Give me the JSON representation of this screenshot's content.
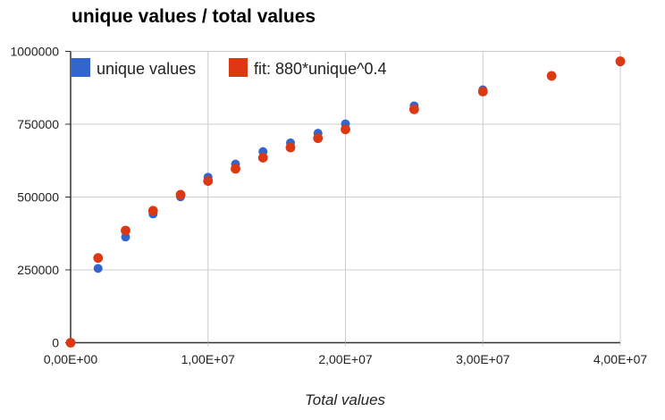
{
  "chart_data": {
    "type": "scatter",
    "title": "unique values / total values",
    "xlabel": "Total values",
    "ylabel": "",
    "xlim": [
      0,
      40000000
    ],
    "ylim": [
      0,
      1000000
    ],
    "grid": true,
    "legend_position": "top-inside",
    "x_tick_values": [
      0,
      10000000,
      20000000,
      30000000,
      40000000
    ],
    "x_tick_labels": [
      "0,00E+00",
      "1,00E+07",
      "2,00E+07",
      "3,00E+07",
      "4,00E+07"
    ],
    "y_tick_values": [
      0,
      250000,
      500000,
      750000,
      1000000
    ],
    "y_tick_labels": [
      "0",
      "250000",
      "500000",
      "750000",
      "1000000"
    ],
    "x": [
      0,
      2000000,
      4000000,
      6000000,
      8000000,
      10000000,
      12000000,
      14000000,
      16000000,
      18000000,
      20000000,
      25000000,
      30000000,
      35000000,
      40000000
    ],
    "series": [
      {
        "name": "unique values",
        "color": "#3366cc",
        "values": [
          0,
          255000,
          363000,
          442000,
          501000,
          568000,
          613000,
          656000,
          686000,
          719000,
          751000,
          813000,
          868000,
          915000,
          964000
        ]
      },
      {
        "name": "fit: 880*unique^0.4",
        "color": "#dc3912",
        "values": [
          0,
          291000,
          385000,
          453000,
          508000,
          555000,
          597000,
          635000,
          670000,
          702000,
          732000,
          801000,
          862000,
          916000,
          966000
        ]
      }
    ],
    "colors": {
      "grid": "#cccccc",
      "axis": "#333333",
      "tick_text": "#222222",
      "title": "#000000"
    }
  }
}
